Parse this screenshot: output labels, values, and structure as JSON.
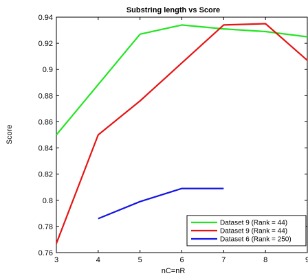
{
  "chart_data": {
    "type": "line",
    "title": "Substring length vs Score",
    "xlabel": "nC=nR",
    "ylabel": "Score",
    "xlim": [
      3,
      9
    ],
    "ylim": [
      0.76,
      0.94
    ],
    "xticks": [
      "3",
      "4",
      "5",
      "6",
      "7",
      "8",
      "9"
    ],
    "yticks": [
      "0.76",
      "0.78",
      "0.8",
      "0.82",
      "0.84",
      "0.86",
      "0.88",
      "0.9",
      "0.92",
      "0.94"
    ],
    "grid": false,
    "legend_position": "bottom-right",
    "series": [
      {
        "name": "Dataset 9 (Rank = 44)",
        "color": "#22e622",
        "x": [
          3,
          5,
          6,
          7,
          8,
          9
        ],
        "y": [
          0.85,
          0.927,
          0.934,
          0.931,
          0.929,
          0.925
        ]
      },
      {
        "name": "Dataset 9 (Rank = 44)",
        "color": "#e61414",
        "x": [
          3,
          4,
          5,
          6,
          7,
          8,
          9
        ],
        "y": [
          0.767,
          0.85,
          0.876,
          0.905,
          0.934,
          0.935,
          0.907
        ]
      },
      {
        "name": "Dataset 6 (Rank = 250)",
        "color": "#1414e6",
        "x": [
          4,
          5,
          6,
          7
        ],
        "y": [
          0.786,
          0.799,
          0.809,
          0.809
        ]
      }
    ]
  }
}
